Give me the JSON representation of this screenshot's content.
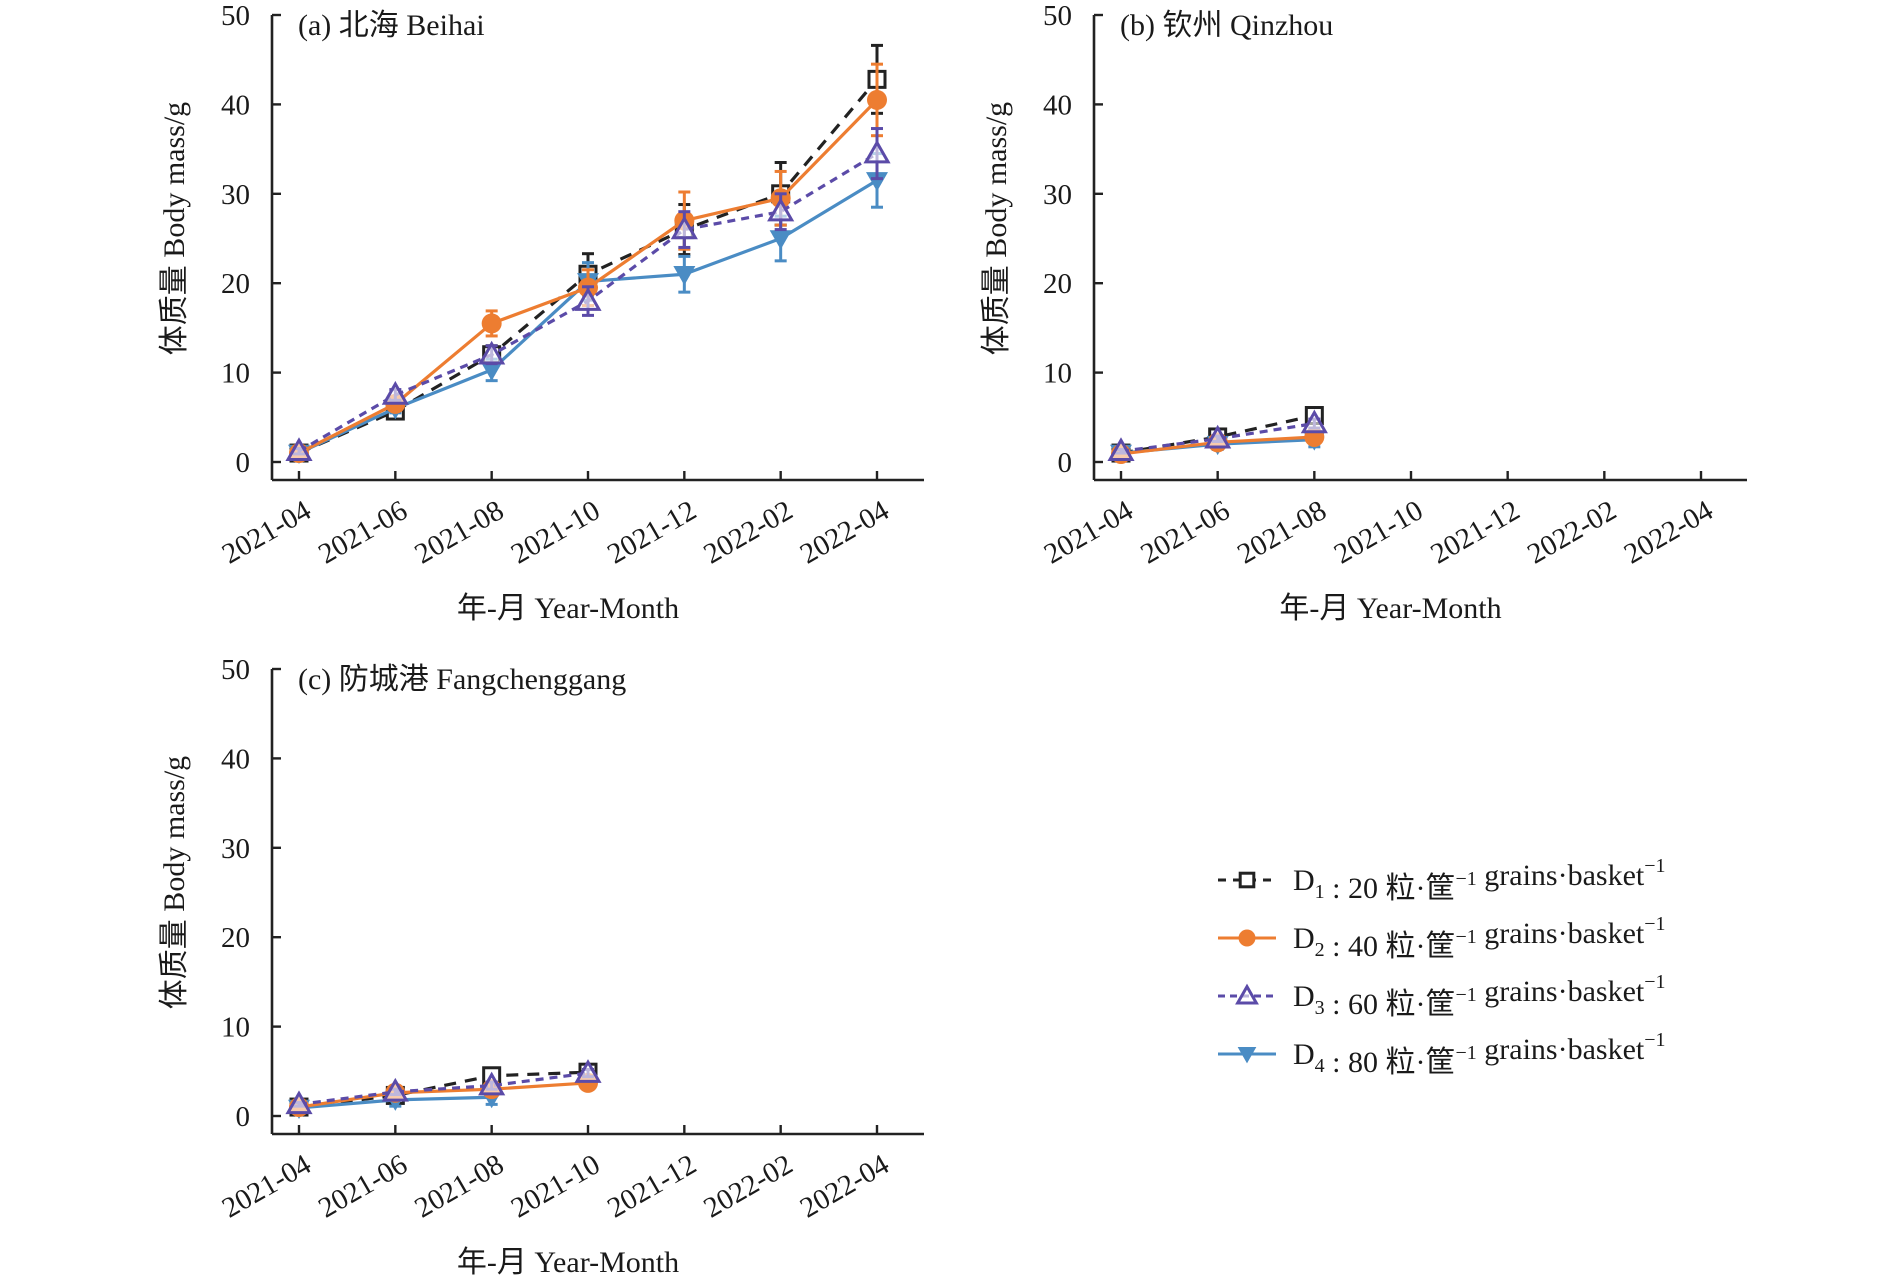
{
  "chart_data": [
    {
      "type": "line",
      "title": "(a) 北海 Beihai",
      "xlabel": "年-月 Year-Month",
      "ylabel": "体质量 Body mass/g",
      "categories": [
        "2021-04",
        "2021-06",
        "2021-08",
        "2021-10",
        "2021-12",
        "2022-02",
        "2022-04"
      ],
      "yticks": [
        0,
        10,
        20,
        30,
        40,
        50
      ],
      "ylim": [
        0,
        50
      ],
      "grid": false,
      "series": [
        {
          "name": "D1",
          "values": [
            1.0,
            5.7,
            12.0,
            21.0,
            26.0,
            30.0,
            42.8
          ],
          "errors": [
            0.3,
            0.5,
            1.0,
            2.3,
            2.8,
            3.5,
            3.8
          ]
        },
        {
          "name": "D2",
          "values": [
            1.0,
            6.5,
            15.5,
            19.5,
            27.0,
            29.5,
            40.5
          ],
          "errors": [
            0.3,
            0.6,
            1.4,
            2.0,
            3.2,
            3.0,
            4.0
          ]
        },
        {
          "name": "D3",
          "values": [
            1.2,
            7.5,
            12.0,
            18.0,
            26.0,
            28.0,
            34.5
          ],
          "errors": [
            0.3,
            0.6,
            1.0,
            1.6,
            2.0,
            2.0,
            2.8
          ]
        },
        {
          "name": "D4",
          "values": [
            1.0,
            6.0,
            10.3,
            20.2,
            21.0,
            25.0,
            31.5
          ],
          "errors": [
            0.3,
            0.5,
            1.2,
            2.1,
            2.0,
            2.5,
            3.0
          ]
        }
      ]
    },
    {
      "type": "line",
      "title": "(b) 钦州 Qinzhou",
      "xlabel": "年-月 Year-Month",
      "ylabel": "体质量 Body mass/g",
      "categories": [
        "2021-04",
        "2021-06",
        "2021-08",
        "2021-10",
        "2021-12",
        "2022-02",
        "2022-04"
      ],
      "yticks": [
        0,
        10,
        20,
        30,
        40,
        50
      ],
      "ylim": [
        0,
        50
      ],
      "grid": false,
      "series": [
        {
          "name": "D1",
          "values": [
            1.0,
            2.8,
            5.2
          ],
          "errors": [
            0.2,
            0.3,
            0.5
          ]
        },
        {
          "name": "D2",
          "values": [
            0.9,
            2.2,
            2.8
          ],
          "errors": [
            0.2,
            0.4,
            0.5
          ]
        },
        {
          "name": "D3",
          "values": [
            1.2,
            2.6,
            4.3
          ],
          "errors": [
            0.2,
            0.3,
            0.5
          ]
        },
        {
          "name": "D4",
          "values": [
            1.0,
            2.0,
            2.5
          ],
          "errors": [
            0.2,
            0.6,
            0.8
          ]
        }
      ]
    },
    {
      "type": "line",
      "title": "(c) 防城港 Fangchenggang",
      "xlabel": "年-月 Year-Month",
      "ylabel": "体质量 Body mass/g",
      "categories": [
        "2021-04",
        "2021-06",
        "2021-08",
        "2021-10",
        "2021-12",
        "2022-02",
        "2022-04"
      ],
      "yticks": [
        0,
        10,
        20,
        30,
        40,
        50
      ],
      "ylim": [
        0,
        50
      ],
      "grid": false,
      "series": [
        {
          "name": "D1",
          "values": [
            1.0,
            2.3,
            4.5,
            4.9
          ],
          "errors": [
            0.2,
            0.3,
            0.4,
            0.4
          ]
        },
        {
          "name": "D2",
          "values": [
            1.0,
            2.6,
            3.0,
            3.7
          ],
          "errors": [
            0.2,
            0.3,
            0.4,
            0.4
          ]
        },
        {
          "name": "D3",
          "values": [
            1.3,
            2.7,
            3.4,
            4.8
          ],
          "errors": [
            0.2,
            0.3,
            0.4,
            0.4
          ]
        },
        {
          "name": "D4",
          "values": [
            0.9,
            1.8,
            2.1
          ],
          "errors": [
            0.2,
            0.7,
            0.8
          ]
        }
      ]
    }
  ],
  "legend": {
    "placement": "bottom-right",
    "items": [
      {
        "key": "D1",
        "label_main": "D",
        "label_sub": "1",
        "label_rest": ": 20 粒·筐",
        "sup1": "−1",
        "label_en": " grains·basket",
        "sup2": "−1",
        "color": "#222222",
        "marker": "open-square",
        "dash": "dashed"
      },
      {
        "key": "D2",
        "label_main": "D",
        "label_sub": "2",
        "label_rest": ": 40 粒·筐",
        "sup1": "−1",
        "label_en": " grains·basket",
        "sup2": "−1",
        "color": "#ED7D31",
        "marker": "filled-circle",
        "dash": "solid"
      },
      {
        "key": "D3",
        "label_main": "D",
        "label_sub": "3",
        "label_rest": ": 60 粒·筐",
        "sup1": "−1",
        "label_en": " grains·basket",
        "sup2": "−1",
        "color": "#5B4BA8",
        "marker": "open-triangle-up",
        "dash": "dotted"
      },
      {
        "key": "D4",
        "label_main": "D",
        "label_sub": "4",
        "label_rest": ": 80 粒·筐",
        "sup1": "−1",
        "label_en": " grains·basket",
        "sup2": "−1",
        "color": "#4A8CC4",
        "marker": "filled-triangle-down",
        "dash": "solid"
      }
    ]
  }
}
